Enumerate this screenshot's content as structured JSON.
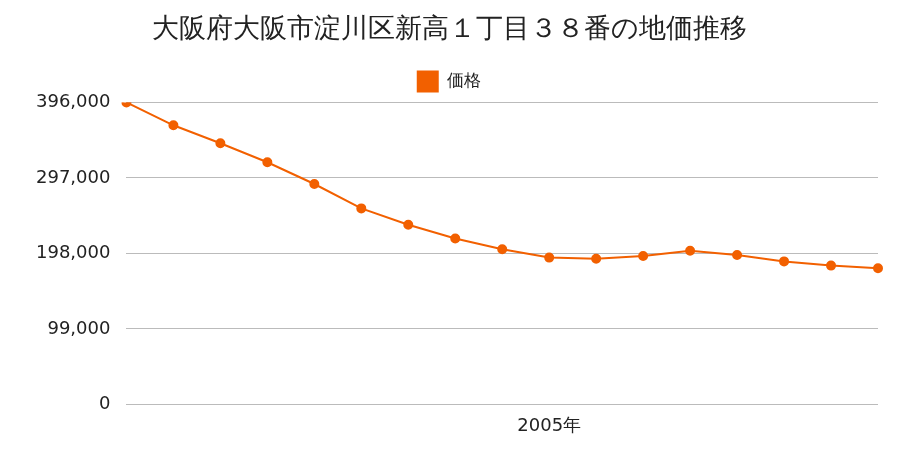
{
  "chart_data": {
    "type": "line",
    "title": "大阪府大阪市淀川区新高１丁目３８番の地価推移",
    "categories": [
      null,
      null,
      null,
      null,
      null,
      null,
      null,
      null,
      null,
      "2005年",
      null,
      null,
      null,
      null,
      null,
      null,
      null
    ],
    "series": [
      {
        "name": "価格",
        "color": "#f26000",
        "marker": "circle",
        "values": [
          396000,
          366000,
          342500,
          317500,
          289000,
          257000,
          235500,
          217500,
          203500,
          192500,
          191000,
          194500,
          201500,
          196000,
          187500,
          182000,
          178500
        ]
      }
    ],
    "ylim": [
      0,
      396000
    ],
    "yticks": [
      0,
      {
        "value": 99000,
        "label": "99,000"
      },
      {
        "value": 198000,
        "label": "198,000"
      },
      {
        "value": 297000,
        "label": "297,000"
      },
      {
        "value": 396000,
        "label": "396,000"
      }
    ],
    "grid": true,
    "legend": "top"
  }
}
